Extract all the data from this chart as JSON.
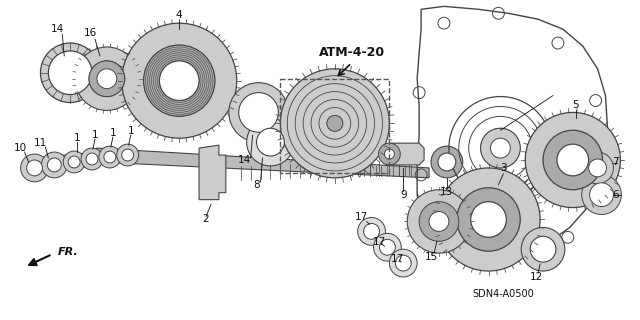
{
  "bg_color": "#ffffff",
  "lc": "#111111",
  "pc": "#444444",
  "figsize": [
    6.4,
    3.2
  ],
  "dpi": 100,
  "atm_label": "ATM-4-20",
  "part_code": "SDN4-A0500",
  "fr_label": "FR."
}
